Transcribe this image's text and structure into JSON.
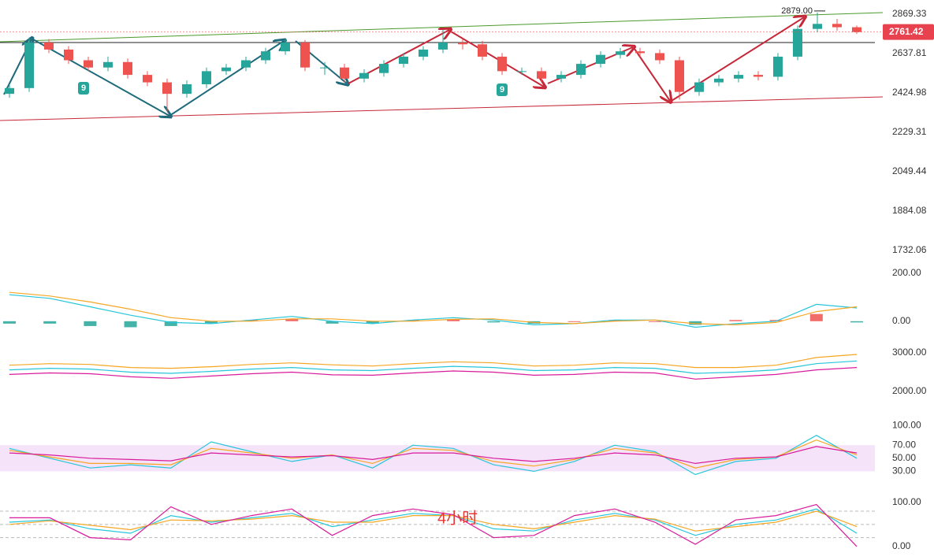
{
  "chart_data": [
    {
      "type": "candlestick",
      "log": true,
      "ylim": [
        1669,
        2957
      ],
      "yticks": [
        2869.33,
        2637.81,
        2424.98,
        2229.31,
        2049.44,
        1884.08,
        1732.06
      ],
      "up_color": "#26a69a",
      "down_color": "#ef5350",
      "open": [
        2420,
        2450,
        2700,
        2660,
        2600,
        2560,
        2590,
        2520,
        2480,
        2420,
        2470,
        2540,
        2560,
        2600,
        2650,
        2700,
        2560,
        2560,
        2500,
        2530,
        2580,
        2620,
        2660,
        2700,
        2690,
        2620,
        2540,
        2540,
        2500,
        2520,
        2580,
        2630,
        2650,
        2640,
        2600,
        2430,
        2480,
        2500,
        2520,
        2510,
        2620,
        2780,
        2810,
        2790
      ],
      "high": [
        2470,
        2730,
        2720,
        2680,
        2620,
        2620,
        2610,
        2540,
        2500,
        2490,
        2560,
        2580,
        2620,
        2670,
        2720,
        2715,
        2590,
        2580,
        2550,
        2600,
        2640,
        2680,
        2775,
        2720,
        2710,
        2640,
        2560,
        2560,
        2540,
        2600,
        2650,
        2670,
        2670,
        2660,
        2620,
        2500,
        2520,
        2540,
        2540,
        2640,
        2800,
        2879,
        2840,
        2800
      ],
      "low": [
        2400,
        2430,
        2640,
        2580,
        2540,
        2540,
        2500,
        2460,
        2330,
        2400,
        2450,
        2520,
        2540,
        2580,
        2630,
        2540,
        2520,
        2480,
        2480,
        2510,
        2560,
        2600,
        2640,
        2660,
        2600,
        2520,
        2520,
        2480,
        2480,
        2500,
        2560,
        2610,
        2620,
        2580,
        2390,
        2410,
        2460,
        2480,
        2490,
        2490,
        2600,
        2760,
        2770,
        2750
      ],
      "close": [
        2450,
        2700,
        2660,
        2600,
        2560,
        2590,
        2520,
        2480,
        2420,
        2470,
        2540,
        2560,
        2600,
        2650,
        2700,
        2560,
        2560,
        2500,
        2530,
        2580,
        2620,
        2660,
        2700,
        2690,
        2620,
        2540,
        2540,
        2500,
        2520,
        2580,
        2630,
        2650,
        2640,
        2600,
        2430,
        2480,
        2500,
        2520,
        2510,
        2620,
        2780,
        2810,
        2790,
        2761.42
      ],
      "high_label": "2879.00",
      "td_labels": [
        "9",
        "9"
      ]
    },
    {
      "type": "macd",
      "ylim": [
        -66,
        222
      ],
      "yticks": [
        {
          "value": 200,
          "label": "200.00"
        },
        {
          "value": 0,
          "label": "0.00"
        }
      ],
      "up_color": "#ef5350",
      "down_color": "#26a69a",
      "histogram": [
        -10,
        -10,
        -20,
        -25,
        -20,
        -10,
        5,
        10,
        -10,
        -10,
        5,
        7,
        -5,
        -10,
        0,
        5,
        0,
        -15,
        5,
        5,
        30,
        -5
      ],
      "series": [
        {
          "color": "#26c6da",
          "values": [
            110,
            95,
            60,
            25,
            -5,
            -10,
            5,
            20,
            0,
            -10,
            5,
            15,
            5,
            -15,
            -10,
            5,
            5,
            -25,
            -10,
            0,
            70,
            55
          ]
        },
        {
          "color": "#f5a623",
          "values": [
            120,
            105,
            80,
            50,
            15,
            0,
            0,
            10,
            10,
            0,
            0,
            8,
            10,
            -5,
            -10,
            0,
            5,
            -10,
            -15,
            -5,
            40,
            60
          ]
        }
      ]
    },
    {
      "type": "line",
      "ylim": [
        1837,
        3163
      ],
      "yticks": [
        {
          "value": 3000,
          "label": "3000.00"
        },
        {
          "value": 2000,
          "label": "2000.00"
        }
      ],
      "series": [
        {
          "color": "#f5a623",
          "values": [
            2680,
            2720,
            2700,
            2620,
            2600,
            2640,
            2700,
            2740,
            2690,
            2660,
            2720,
            2770,
            2740,
            2660,
            2680,
            2740,
            2720,
            2620,
            2620,
            2680,
            2880,
            2960
          ]
        },
        {
          "color": "#26c6da",
          "values": [
            2560,
            2600,
            2580,
            2500,
            2470,
            2520,
            2580,
            2620,
            2560,
            2540,
            2600,
            2650,
            2620,
            2540,
            2560,
            2620,
            2600,
            2470,
            2500,
            2560,
            2720,
            2790
          ]
        },
        {
          "color": "#d81b9a",
          "values": [
            2440,
            2480,
            2460,
            2380,
            2340,
            2400,
            2460,
            2500,
            2430,
            2420,
            2480,
            2530,
            2500,
            2420,
            2440,
            2500,
            2480,
            2320,
            2380,
            2440,
            2560,
            2620
          ]
        }
      ]
    },
    {
      "type": "line",
      "ylim": [
        16,
        110
      ],
      "band": [
        30,
        70
      ],
      "band_color": "#f3dcf7",
      "yticks": [
        {
          "value": 100,
          "label": "100.00"
        },
        {
          "value": 70,
          "label": "70.00"
        },
        {
          "value": 50,
          "label": "50.00"
        },
        {
          "value": 30,
          "label": "30.00"
        }
      ],
      "series": [
        {
          "color": "#26c6da",
          "values": [
            65,
            50,
            35,
            40,
            35,
            75,
            60,
            45,
            55,
            35,
            70,
            65,
            40,
            30,
            45,
            70,
            60,
            25,
            45,
            50,
            85,
            50
          ]
        },
        {
          "color": "#f5a623",
          "values": [
            62,
            52,
            42,
            42,
            40,
            65,
            58,
            50,
            55,
            42,
            65,
            62,
            45,
            38,
            48,
            65,
            58,
            35,
            48,
            52,
            78,
            55
          ]
        },
        {
          "color": "#d81b9a",
          "values": [
            58,
            55,
            50,
            48,
            46,
            58,
            55,
            52,
            54,
            48,
            58,
            58,
            50,
            45,
            50,
            58,
            55,
            42,
            50,
            52,
            68,
            58
          ]
        }
      ]
    },
    {
      "type": "line",
      "ylim": [
        -20,
        114
      ],
      "guides": [
        80,
        50,
        20
      ],
      "yticks": [
        {
          "value": 100,
          "label": "100.00"
        },
        {
          "value": 0,
          "label": "0.00"
        }
      ],
      "annotation": "4小时",
      "series": [
        {
          "color": "#26c6da",
          "values": [
            55,
            60,
            40,
            30,
            70,
            55,
            65,
            75,
            45,
            60,
            75,
            70,
            40,
            35,
            60,
            75,
            60,
            25,
            50,
            60,
            85,
            30
          ]
        },
        {
          "color": "#f5a623",
          "values": [
            50,
            58,
            48,
            38,
            60,
            58,
            62,
            70,
            55,
            55,
            70,
            70,
            50,
            40,
            55,
            70,
            62,
            35,
            45,
            55,
            80,
            45
          ]
        },
        {
          "color": "#d81b9a",
          "values": [
            65,
            65,
            20,
            15,
            90,
            50,
            70,
            85,
            25,
            70,
            85,
            72,
            20,
            25,
            70,
            85,
            55,
            5,
            60,
            70,
            95,
            0
          ]
        }
      ]
    }
  ]
}
